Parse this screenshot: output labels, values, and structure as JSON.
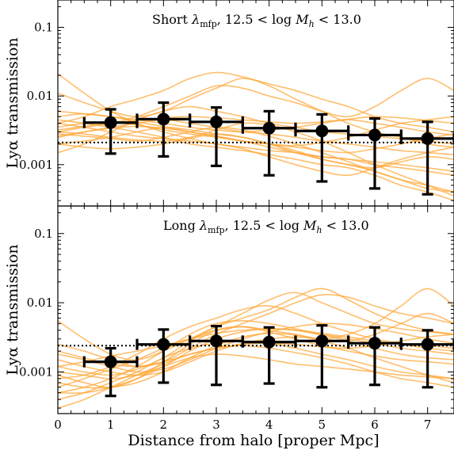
{
  "chart_data": {
    "type": "line",
    "xlabel": "Distance from halo [proper Mpc]",
    "xlim": [
      0,
      7.5
    ],
    "x_ticks": [
      0,
      1,
      2,
      3,
      4,
      5,
      6,
      7
    ],
    "x_tick_labels": [
      "0",
      "1",
      "2",
      "3",
      "4",
      "5",
      "6",
      "7"
    ],
    "line_color": "#ffa533",
    "marker_color": "#000000",
    "panels": [
      {
        "id": "top",
        "title_prefix": "Short ",
        "title_lambda": "λ",
        "title_sub": "mfp",
        "title_rest": ", 12.5 < log ",
        "title_M": "M",
        "title_Msub": "h",
        "title_end": " < 13.0",
        "ylabel": "Lyα transmission",
        "yscale": "log",
        "ylim": [
          0.00025,
          0.25
        ],
        "y_ticks": [
          0.001,
          0.01,
          0.1
        ],
        "y_tick_labels": [
          "0.001",
          "0.01",
          "0.1"
        ],
        "mean_level": 0.0021,
        "points": [
          {
            "x": 1,
            "y": 0.0041,
            "xerr": 0.5,
            "ylow": 0.00145,
            "yhigh": 0.0064
          },
          {
            "x": 2,
            "y": 0.0046,
            "xerr": 0.5,
            "ylow": 0.00132,
            "yhigh": 0.008
          },
          {
            "x": 3,
            "y": 0.0042,
            "xerr": 0.5,
            "ylow": 0.00096,
            "yhigh": 0.0068
          },
          {
            "x": 4,
            "y": 0.0034,
            "xerr": 0.5,
            "ylow": 0.0007,
            "yhigh": 0.006
          },
          {
            "x": 5,
            "y": 0.0031,
            "xerr": 0.5,
            "ylow": 0.00057,
            "yhigh": 0.0054
          },
          {
            "x": 6,
            "y": 0.0027,
            "xerr": 0.5,
            "ylow": 0.00045,
            "yhigh": 0.0047
          },
          {
            "x": 7,
            "y": 0.0024,
            "xerr": 0.5,
            "ylow": 0.00037,
            "yhigh": 0.0042
          }
        ],
        "sightlines_x": [
          0,
          0.5,
          1,
          1.5,
          2,
          2.5,
          3,
          3.5,
          4,
          4.5,
          5,
          5.5,
          6,
          6.5,
          7,
          7.5
        ],
        "sightlines": [
          [
            0.021,
            0.011,
            0.006,
            0.004,
            0.003,
            0.0024,
            0.002,
            0.0018,
            0.0016,
            0.0015,
            0.0013,
            0.0012,
            0.001,
            0.0009,
            0.0008,
            0.0007
          ],
          [
            0.011,
            0.008,
            0.006,
            0.005,
            0.006,
            0.009,
            0.013,
            0.018,
            0.014,
            0.009,
            0.006,
            0.004,
            0.003,
            0.0025,
            0.002,
            0.0018
          ],
          [
            0.004,
            0.005,
            0.007,
            0.009,
            0.012,
            0.018,
            0.022,
            0.019,
            0.015,
            0.012,
            0.009,
            0.007,
            0.005,
            0.004,
            0.0035,
            0.003
          ],
          [
            0.003,
            0.0035,
            0.004,
            0.005,
            0.007,
            0.01,
            0.014,
            0.013,
            0.01,
            0.008,
            0.006,
            0.005,
            0.007,
            0.012,
            0.018,
            0.012
          ],
          [
            0.0025,
            0.003,
            0.0035,
            0.004,
            0.0045,
            0.004,
            0.0035,
            0.003,
            0.0028,
            0.0025,
            0.0022,
            0.002,
            0.0018,
            0.0016,
            0.0015,
            0.0014
          ],
          [
            0.002,
            0.0022,
            0.0025,
            0.003,
            0.0035,
            0.0032,
            0.0028,
            0.0025,
            0.002,
            0.0016,
            0.0012,
            0.001,
            0.0008,
            0.0006,
            0.0005,
            0.0004
          ],
          [
            0.0035,
            0.004,
            0.0042,
            0.0038,
            0.0032,
            0.0028,
            0.0025,
            0.0022,
            0.002,
            0.0018,
            0.0016,
            0.0015,
            0.0017,
            0.002,
            0.0024,
            0.0028
          ],
          [
            0.0045,
            0.004,
            0.0035,
            0.003,
            0.0025,
            0.002,
            0.0018,
            0.0016,
            0.0014,
            0.0012,
            0.001,
            0.0009,
            0.0007,
            0.0005,
            0.0004,
            0.0003
          ],
          [
            0.0015,
            0.002,
            0.003,
            0.0045,
            0.006,
            0.007,
            0.006,
            0.005,
            0.004,
            0.0035,
            0.003,
            0.0028,
            0.0026,
            0.0024,
            0.0022,
            0.002
          ],
          [
            0.003,
            0.0028,
            0.0025,
            0.0023,
            0.0022,
            0.0025,
            0.0032,
            0.004,
            0.0038,
            0.003,
            0.0022,
            0.0015,
            0.001,
            0.0007,
            0.0005,
            0.00035
          ],
          [
            0.005,
            0.0055,
            0.005,
            0.0045,
            0.004,
            0.0035,
            0.0032,
            0.003,
            0.0032,
            0.0035,
            0.004,
            0.0045,
            0.004,
            0.0035,
            0.003,
            0.0027
          ],
          [
            0.0028,
            0.0026,
            0.0024,
            0.0022,
            0.0025,
            0.003,
            0.0035,
            0.0032,
            0.0026,
            0.002,
            0.0015,
            0.0011,
            0.0008,
            0.0006,
            0.00045,
            0.0004
          ],
          [
            0.004,
            0.0035,
            0.003,
            0.0026,
            0.0024,
            0.0022,
            0.002,
            0.0017,
            0.0013,
            0.001,
            0.0008,
            0.0007,
            0.0009,
            0.0012,
            0.0015,
            0.0018
          ],
          [
            0.0032,
            0.0036,
            0.004,
            0.0044,
            0.0048,
            0.005,
            0.0048,
            0.0045,
            0.0042,
            0.004,
            0.0042,
            0.0046,
            0.005,
            0.0048,
            0.0044,
            0.004
          ],
          [
            0.002,
            0.0018,
            0.0017,
            0.0018,
            0.002,
            0.0024,
            0.0028,
            0.0025,
            0.002,
            0.0015,
            0.0012,
            0.001,
            0.0009,
            0.0011,
            0.0013,
            0.0012
          ],
          [
            0.006,
            0.0055,
            0.005,
            0.0042,
            0.0036,
            0.003,
            0.0026,
            0.0022,
            0.0018,
            0.0015,
            0.0013,
            0.0012,
            0.0011,
            0.001,
            0.0009,
            0.0008
          ],
          [
            0.0026,
            0.003,
            0.0034,
            0.0036,
            0.0034,
            0.003,
            0.0026,
            0.0022,
            0.002,
            0.0019,
            0.0021,
            0.0025,
            0.0032,
            0.004,
            0.0045,
            0.005
          ]
        ]
      },
      {
        "id": "bottom",
        "title_prefix": "Long ",
        "title_lambda": "λ",
        "title_sub": "mfp",
        "title_rest": ", 12.5 < log ",
        "title_M": "M",
        "title_Msub": "h",
        "title_end": " < 13.0",
        "ylabel": "Lyα transmission",
        "yscale": "log",
        "ylim": [
          0.00025,
          0.25
        ],
        "y_ticks": [
          0.001,
          0.01,
          0.1
        ],
        "y_tick_labels": [
          "0.001",
          "0.01",
          "0.1"
        ],
        "mean_level": 0.0024,
        "points": [
          {
            "x": 1,
            "y": 0.0014,
            "xerr": 0.5,
            "ylow": 0.00045,
            "yhigh": 0.0022
          },
          {
            "x": 2,
            "y": 0.0025,
            "xerr": 0.5,
            "ylow": 0.0007,
            "yhigh": 0.0041
          },
          {
            "x": 3,
            "y": 0.0028,
            "xerr": 0.5,
            "ylow": 0.00065,
            "yhigh": 0.0046
          },
          {
            "x": 4,
            "y": 0.0027,
            "xerr": 0.5,
            "ylow": 0.00068,
            "yhigh": 0.0044
          },
          {
            "x": 5,
            "y": 0.0028,
            "xerr": 0.5,
            "ylow": 0.0006,
            "yhigh": 0.0047
          },
          {
            "x": 6,
            "y": 0.0026,
            "xerr": 0.5,
            "ylow": 0.00065,
            "yhigh": 0.0044
          },
          {
            "x": 7,
            "y": 0.0025,
            "xerr": 0.5,
            "ylow": 0.0006,
            "yhigh": 0.004
          }
        ],
        "sightlines_x": [
          0,
          0.5,
          1,
          1.5,
          2,
          2.5,
          3,
          3.5,
          4,
          4.5,
          5,
          5.5,
          6,
          6.5,
          7,
          7.5
        ],
        "sightlines": [
          [
            0.0055,
            0.003,
            0.0018,
            0.0015,
            0.002,
            0.003,
            0.0045,
            0.006,
            0.008,
            0.012,
            0.016,
            0.011,
            0.007,
            0.005,
            0.004,
            0.0035
          ],
          [
            0.0025,
            0.002,
            0.0015,
            0.0012,
            0.0014,
            0.0022,
            0.0035,
            0.005,
            0.007,
            0.01,
            0.013,
            0.012,
            0.009,
            0.007,
            0.006,
            0.005
          ],
          [
            0.0012,
            0.001,
            0.0009,
            0.0011,
            0.0016,
            0.0028,
            0.0045,
            0.007,
            0.011,
            0.014,
            0.01,
            0.007,
            0.005,
            0.0042,
            0.0038,
            0.0035
          ],
          [
            0.0008,
            0.0009,
            0.0012,
            0.0018,
            0.003,
            0.0045,
            0.006,
            0.008,
            0.009,
            0.007,
            0.005,
            0.0038,
            0.003,
            0.0026,
            0.0024,
            0.0022
          ],
          [
            0.0006,
            0.0008,
            0.0011,
            0.0015,
            0.0022,
            0.003,
            0.004,
            0.0045,
            0.004,
            0.0035,
            0.003,
            0.0035,
            0.005,
            0.009,
            0.016,
            0.009
          ],
          [
            0.0005,
            0.0006,
            0.0008,
            0.0012,
            0.002,
            0.0035,
            0.005,
            0.0055,
            0.005,
            0.0042,
            0.0035,
            0.003,
            0.0026,
            0.0022,
            0.002,
            0.0018
          ],
          [
            0.0009,
            0.0007,
            0.0006,
            0.0008,
            0.0014,
            0.0025,
            0.004,
            0.0045,
            0.0038,
            0.003,
            0.0024,
            0.002,
            0.0017,
            0.0015,
            0.0014,
            0.0013
          ],
          [
            0.0004,
            0.0005,
            0.0007,
            0.001,
            0.0016,
            0.0022,
            0.0026,
            0.0028,
            0.0026,
            0.0022,
            0.0018,
            0.0015,
            0.0012,
            0.001,
            0.0009,
            0.0008
          ],
          [
            0.0015,
            0.0012,
            0.001,
            0.0009,
            0.001,
            0.0014,
            0.002,
            0.0026,
            0.003,
            0.0032,
            0.003,
            0.0028,
            0.0035,
            0.005,
            0.007,
            0.005
          ],
          [
            0.0003,
            0.0004,
            0.0006,
            0.0009,
            0.0013,
            0.0018,
            0.0022,
            0.0024,
            0.0022,
            0.0019,
            0.0016,
            0.0013,
            0.001,
            0.0008,
            0.0007,
            0.0006
          ],
          [
            0.0012,
            0.0014,
            0.0017,
            0.002,
            0.0024,
            0.003,
            0.0036,
            0.004,
            0.0042,
            0.004,
            0.0036,
            0.0032,
            0.0028,
            0.0025,
            0.0022,
            0.002
          ],
          [
            0.0007,
            0.0006,
            0.0006,
            0.0007,
            0.001,
            0.0016,
            0.0024,
            0.0032,
            0.0036,
            0.0034,
            0.0028,
            0.0022,
            0.0016,
            0.0012,
            0.0009,
            0.0007
          ],
          [
            0.002,
            0.0016,
            0.0013,
            0.0012,
            0.0014,
            0.0018,
            0.0022,
            0.0025,
            0.0026,
            0.0025,
            0.0023,
            0.0022,
            0.0024,
            0.0028,
            0.0032,
            0.0035
          ],
          [
            0.0005,
            0.0005,
            0.0006,
            0.0008,
            0.0012,
            0.002,
            0.003,
            0.0038,
            0.0042,
            0.004,
            0.0034,
            0.0028,
            0.0022,
            0.0018,
            0.0016,
            0.0015
          ],
          [
            0.001,
            0.0009,
            0.0008,
            0.0009,
            0.0012,
            0.0016,
            0.0018,
            0.0017,
            0.0015,
            0.0013,
            0.0012,
            0.0011,
            0.001,
            0.0009,
            0.00085,
            0.0008
          ],
          [
            0.0018,
            0.0015,
            0.0012,
            0.001,
            0.0011,
            0.0015,
            0.0022,
            0.003,
            0.0038,
            0.0045,
            0.005,
            0.0048,
            0.0042,
            0.0036,
            0.003,
            0.0026
          ]
        ]
      }
    ]
  }
}
